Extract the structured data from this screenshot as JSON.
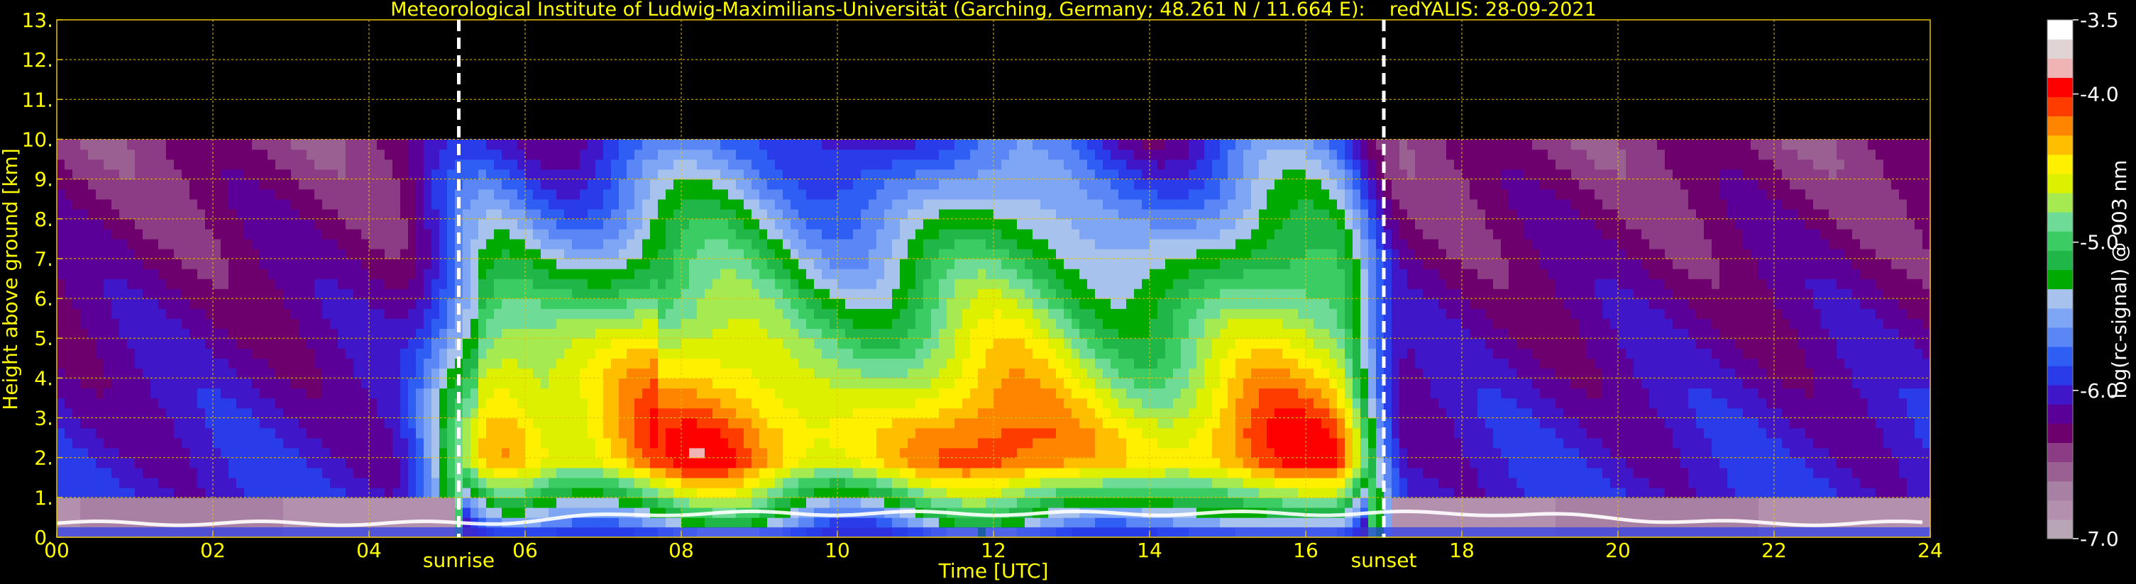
{
  "colors": {
    "text": "#ffff00",
    "grid": "#e8c400",
    "background": "#000000",
    "event_line": "#ffffff",
    "colorbar_label": "#ffffff"
  },
  "chart_data": {
    "type": "heatmap",
    "title": "Meteorological Institute of Ludwig-Maximilians-Universität (Garching, Germany; 48.261 N / 11.664 E):    redYALIS: 28-09-2021",
    "xlabel": "Time [UTC]",
    "ylabel": "Height above ground [km]",
    "xlim": [
      0,
      24
    ],
    "ylim": [
      0,
      13
    ],
    "xticks": [
      0,
      2,
      4,
      6,
      8,
      10,
      12,
      14,
      16,
      18,
      20,
      22,
      24
    ],
    "xtick_labels": [
      "00",
      "02",
      "04",
      "06",
      "08",
      "10",
      "12",
      "14",
      "16",
      "18",
      "20",
      "22",
      "24"
    ],
    "yticks": [
      0,
      1,
      2,
      3,
      4,
      5,
      6,
      7,
      8,
      9,
      10,
      11,
      12,
      13
    ],
    "ytick_labels": [
      "0.",
      "1.",
      "2.",
      "3.",
      "4.",
      "5.",
      "6.",
      "7.",
      "8.",
      "9.",
      "10.",
      "11.",
      "12.",
      "13."
    ],
    "grid": true,
    "events": [
      {
        "label": "sunrise",
        "x": 5.15
      },
      {
        "label": "sunset",
        "x": 17.0
      }
    ],
    "colorbar": {
      "label": "log(rc-signal) @ 903 nm",
      "range": [
        -7.0,
        -3.5
      ],
      "ticks": [
        -7.0,
        -6.0,
        -5.0,
        -4.0,
        -3.5
      ],
      "tick_labels": [
        "-7.0",
        "-6.0",
        "-5.0",
        "-4.0",
        "-3.5"
      ],
      "colors": [
        "#b8a6b6",
        "#b290ae",
        "#a880a4",
        "#9a6092",
        "#8c3c84",
        "#6e006e",
        "#5a0098",
        "#3f16c8",
        "#2a3cea",
        "#2f5ef5",
        "#5a86f6",
        "#7ea6f4",
        "#a8c2ee",
        "#00aa00",
        "#21b648",
        "#3ccc64",
        "#6edc96",
        "#a4ea50",
        "#dcf000",
        "#fff000",
        "#ffbe00",
        "#ff8400",
        "#ff3c00",
        "#ff0000",
        "#f0b4b4",
        "#e0d4d4",
        "#ffffff"
      ]
    },
    "z_min_km": 0,
    "z_max_km": 10
  }
}
